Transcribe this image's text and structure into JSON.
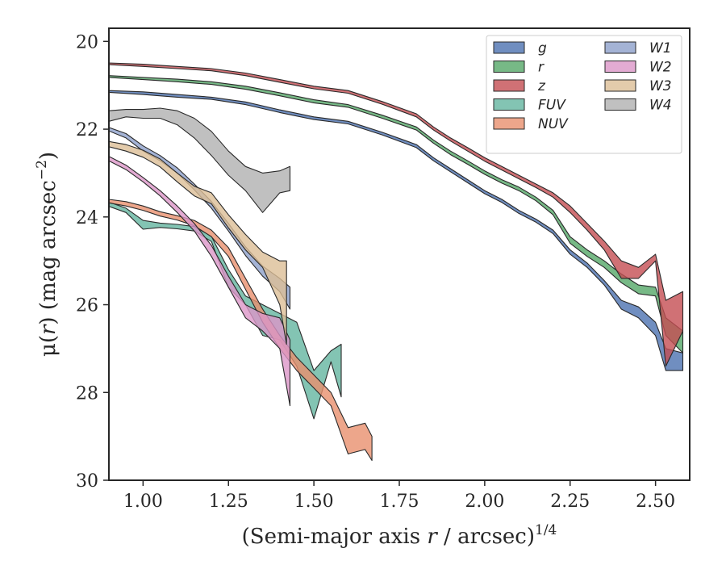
{
  "chart_data": {
    "type": "area",
    "xlabel": {
      "main": "(Semi-major axis ",
      "var": "r",
      "unit": " / arcsec)",
      "exp": "1/4"
    },
    "ylabel": {
      "main": "μ(",
      "var": "r",
      "unit": ") (mag arcsec",
      "exp": "−2",
      "close": ")"
    },
    "xlim": [
      0.9,
      2.6
    ],
    "ylim": [
      30,
      19.7
    ],
    "y_inverted": true,
    "xticks": [
      1.0,
      1.25,
      1.5,
      1.75,
      2.0,
      2.25,
      2.5
    ],
    "xtick_labels": [
      "1.00",
      "1.25",
      "1.50",
      "1.75",
      "2.00",
      "2.25",
      "2.50"
    ],
    "yticks": [
      20,
      22,
      24,
      26,
      28,
      30
    ],
    "ytick_labels": [
      "20",
      "22",
      "24",
      "26",
      "28",
      "30"
    ],
    "grid": false,
    "legend": {
      "placement": "top-right",
      "columns": 2
    },
    "series": [
      {
        "name": "g",
        "color": "#4c72b0",
        "points": [
          [
            0.9,
            21.12,
            21.16
          ],
          [
            1.0,
            21.15,
            21.21
          ],
          [
            1.1,
            21.21,
            21.27
          ],
          [
            1.2,
            21.27,
            21.32
          ],
          [
            1.3,
            21.38,
            21.44
          ],
          [
            1.4,
            21.56,
            21.62
          ],
          [
            1.5,
            21.72,
            21.78
          ],
          [
            1.6,
            21.82,
            21.88
          ],
          [
            1.7,
            22.07,
            22.13
          ],
          [
            1.8,
            22.35,
            22.42
          ],
          [
            1.85,
            22.65,
            22.72
          ],
          [
            1.9,
            22.9,
            22.97
          ],
          [
            1.95,
            23.15,
            23.22
          ],
          [
            2.0,
            23.4,
            23.47
          ],
          [
            2.05,
            23.6,
            23.67
          ],
          [
            2.1,
            23.85,
            23.92
          ],
          [
            2.15,
            24.05,
            24.12
          ],
          [
            2.2,
            24.3,
            24.38
          ],
          [
            2.25,
            24.75,
            24.85
          ],
          [
            2.3,
            25.05,
            25.15
          ],
          [
            2.35,
            25.45,
            25.55
          ],
          [
            2.4,
            25.9,
            26.1
          ],
          [
            2.45,
            26.05,
            26.3
          ],
          [
            2.5,
            26.4,
            26.7
          ],
          [
            2.53,
            27.0,
            27.5
          ],
          [
            2.58,
            27.1,
            27.5
          ]
        ]
      },
      {
        "name": "r",
        "color": "#55a868",
        "points": [
          [
            0.9,
            20.78,
            20.82
          ],
          [
            1.0,
            20.82,
            20.87
          ],
          [
            1.1,
            20.86,
            20.92
          ],
          [
            1.2,
            20.92,
            20.98
          ],
          [
            1.3,
            21.02,
            21.09
          ],
          [
            1.4,
            21.17,
            21.24
          ],
          [
            1.5,
            21.33,
            21.4
          ],
          [
            1.6,
            21.44,
            21.5
          ],
          [
            1.7,
            21.68,
            21.75
          ],
          [
            1.8,
            21.95,
            22.02
          ],
          [
            1.85,
            22.25,
            22.32
          ],
          [
            1.9,
            22.5,
            22.58
          ],
          [
            1.95,
            22.72,
            22.8
          ],
          [
            2.0,
            22.95,
            23.03
          ],
          [
            2.05,
            23.15,
            23.23
          ],
          [
            2.1,
            23.32,
            23.4
          ],
          [
            2.15,
            23.55,
            23.63
          ],
          [
            2.2,
            23.85,
            23.95
          ],
          [
            2.25,
            24.45,
            24.6
          ],
          [
            2.3,
            24.75,
            24.9
          ],
          [
            2.35,
            25.0,
            25.15
          ],
          [
            2.4,
            25.3,
            25.5
          ],
          [
            2.45,
            25.55,
            25.75
          ],
          [
            2.5,
            25.6,
            25.8
          ],
          [
            2.53,
            26.3,
            26.7
          ],
          [
            2.58,
            26.6,
            27.1
          ]
        ]
      },
      {
        "name": "z",
        "color": "#c44e52",
        "points": [
          [
            0.9,
            20.49,
            20.53
          ],
          [
            1.0,
            20.52,
            20.57
          ],
          [
            1.1,
            20.57,
            20.62
          ],
          [
            1.2,
            20.62,
            20.67
          ],
          [
            1.3,
            20.72,
            20.78
          ],
          [
            1.4,
            20.87,
            20.93
          ],
          [
            1.5,
            21.02,
            21.08
          ],
          [
            1.6,
            21.12,
            21.18
          ],
          [
            1.7,
            21.37,
            21.43
          ],
          [
            1.8,
            21.65,
            21.72
          ],
          [
            1.85,
            21.95,
            22.02
          ],
          [
            1.9,
            22.2,
            22.27
          ],
          [
            1.95,
            22.42,
            22.5
          ],
          [
            2.0,
            22.65,
            22.73
          ],
          [
            2.05,
            22.85,
            22.93
          ],
          [
            2.1,
            23.05,
            23.13
          ],
          [
            2.15,
            23.25,
            23.33
          ],
          [
            2.2,
            23.45,
            23.55
          ],
          [
            2.25,
            23.75,
            23.9
          ],
          [
            2.3,
            24.15,
            24.3
          ],
          [
            2.35,
            24.55,
            24.75
          ],
          [
            2.4,
            25.0,
            25.4
          ],
          [
            2.45,
            25.15,
            25.4
          ],
          [
            2.5,
            24.85,
            25.0
          ],
          [
            2.53,
            25.9,
            27.4
          ],
          [
            2.58,
            25.7,
            26.6
          ]
        ]
      },
      {
        "name": "FUV",
        "color": "#64b5a0",
        "points": [
          [
            0.9,
            23.66,
            23.76
          ],
          [
            0.95,
            23.8,
            23.9
          ],
          [
            1.0,
            24.08,
            24.28
          ],
          [
            1.05,
            24.14,
            24.24
          ],
          [
            1.1,
            24.17,
            24.27
          ],
          [
            1.15,
            24.22,
            24.32
          ],
          [
            1.2,
            24.44,
            24.56
          ],
          [
            1.25,
            25.2,
            25.6
          ],
          [
            1.3,
            25.8,
            26.0
          ],
          [
            1.35,
            26.0,
            26.7
          ],
          [
            1.4,
            26.2,
            26.8
          ],
          [
            1.45,
            26.4,
            27.4
          ],
          [
            1.5,
            27.5,
            28.6
          ],
          [
            1.55,
            27.05,
            27.3
          ],
          [
            1.58,
            26.9,
            28.1
          ]
        ]
      },
      {
        "name": "NUV",
        "color": "#e8906e",
        "points": [
          [
            0.9,
            23.6,
            23.68
          ],
          [
            0.95,
            23.65,
            23.75
          ],
          [
            1.0,
            23.75,
            23.85
          ],
          [
            1.05,
            23.88,
            23.98
          ],
          [
            1.1,
            23.97,
            24.07
          ],
          [
            1.15,
            24.08,
            24.2
          ],
          [
            1.2,
            24.3,
            24.45
          ],
          [
            1.25,
            24.7,
            24.9
          ],
          [
            1.3,
            25.4,
            25.65
          ],
          [
            1.35,
            26.1,
            26.4
          ],
          [
            1.4,
            26.7,
            27.0
          ],
          [
            1.45,
            27.2,
            27.5
          ],
          [
            1.5,
            27.6,
            27.9
          ],
          [
            1.55,
            28.0,
            28.3
          ],
          [
            1.6,
            28.8,
            29.4
          ],
          [
            1.65,
            28.7,
            29.3
          ],
          [
            1.67,
            29.0,
            29.55
          ]
        ]
      },
      {
        "name": "W1",
        "color": "#8da0cb",
        "points": [
          [
            0.9,
            21.96,
            22.04
          ],
          [
            0.95,
            22.1,
            22.2
          ],
          [
            1.0,
            22.38,
            22.5
          ],
          [
            1.05,
            22.6,
            22.72
          ],
          [
            1.1,
            22.88,
            23.0
          ],
          [
            1.15,
            23.25,
            23.38
          ],
          [
            1.2,
            23.65,
            23.8
          ],
          [
            1.25,
            24.15,
            24.32
          ],
          [
            1.3,
            24.68,
            24.88
          ],
          [
            1.35,
            25.12,
            25.35
          ],
          [
            1.4,
            25.4,
            25.7
          ],
          [
            1.43,
            25.6,
            26.1
          ]
        ]
      },
      {
        "name": "W2",
        "color": "#dc96c8",
        "points": [
          [
            0.9,
            22.62,
            22.72
          ],
          [
            0.95,
            22.82,
            22.92
          ],
          [
            1.0,
            23.1,
            23.2
          ],
          [
            1.05,
            23.4,
            23.52
          ],
          [
            1.1,
            23.75,
            23.9
          ],
          [
            1.15,
            24.15,
            24.32
          ],
          [
            1.2,
            24.65,
            24.9
          ],
          [
            1.25,
            25.35,
            25.6
          ],
          [
            1.3,
            26.0,
            26.3
          ],
          [
            1.35,
            26.2,
            26.6
          ],
          [
            1.4,
            26.3,
            27.0
          ],
          [
            1.43,
            26.8,
            28.3
          ]
        ]
      },
      {
        "name": "W3",
        "color": "#dcbe96",
        "points": [
          [
            0.9,
            22.28,
            22.4
          ],
          [
            0.95,
            22.35,
            22.5
          ],
          [
            1.0,
            22.48,
            22.64
          ],
          [
            1.05,
            22.68,
            22.86
          ],
          [
            1.1,
            23.0,
            23.2
          ],
          [
            1.15,
            23.3,
            23.52
          ],
          [
            1.2,
            23.45,
            23.7
          ],
          [
            1.25,
            23.95,
            24.25
          ],
          [
            1.3,
            24.4,
            24.75
          ],
          [
            1.35,
            24.8,
            25.15
          ],
          [
            1.4,
            25.0,
            26.0
          ],
          [
            1.42,
            25.0,
            26.9
          ]
        ]
      },
      {
        "name": "W4",
        "color": "#b0b0b0",
        "points": [
          [
            0.9,
            21.58,
            21.82
          ],
          [
            0.95,
            21.55,
            21.72
          ],
          [
            1.0,
            21.55,
            21.75
          ],
          [
            1.05,
            21.52,
            21.75
          ],
          [
            1.1,
            21.58,
            21.9
          ],
          [
            1.15,
            21.75,
            22.2
          ],
          [
            1.2,
            22.05,
            22.6
          ],
          [
            1.25,
            22.5,
            23.05
          ],
          [
            1.3,
            22.85,
            23.4
          ],
          [
            1.35,
            23.0,
            23.9
          ],
          [
            1.4,
            22.95,
            23.45
          ],
          [
            1.43,
            22.85,
            23.4
          ]
        ]
      }
    ]
  }
}
